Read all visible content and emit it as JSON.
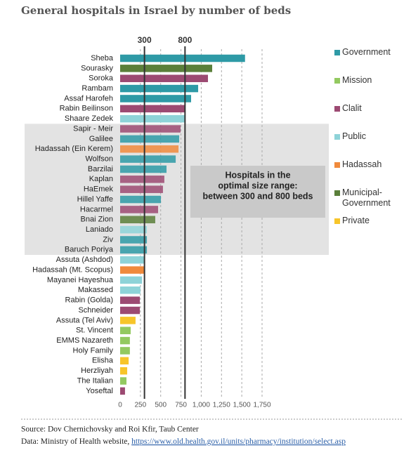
{
  "chart_data": {
    "type": "bar",
    "orientation": "horizontal",
    "title": "General hospitals in Israel by number of beds",
    "categories": [
      "Sheba",
      "Sourasky",
      "Soroka",
      "Rambam",
      "Assaf Harofeh",
      "Rabin Beilinson",
      "Shaare Zedek",
      "Sapir - Meir",
      "Galilee",
      "Hadassah (Ein Kerem)",
      "Wolfson",
      "Barzilai",
      "Kaplan",
      "HaEmek",
      "Hillel Yaffe",
      "Hacarmel",
      "Bnai Zion",
      "Laniado",
      "Ziv",
      "Baruch Poriya",
      "Assuta (Ashdod)",
      "Hadassah (Mt. Scopus)",
      "Mayanei Hayeshua",
      "Makassed",
      "Rabin (Golda)",
      "Schneider",
      "Assuta (Tel Aviv)",
      "St. Vincent",
      "EMMS Nazareth",
      "Holy Family",
      "Elisha",
      "Herzliyah",
      "The Italian",
      "Yoseftal"
    ],
    "values": [
      1540,
      1135,
      1083,
      962,
      875,
      805,
      800,
      745,
      728,
      720,
      685,
      572,
      545,
      528,
      503,
      468,
      433,
      330,
      330,
      330,
      295,
      295,
      270,
      250,
      243,
      243,
      190,
      130,
      120,
      120,
      105,
      87,
      78,
      60
    ],
    "groups": [
      0,
      5,
      2,
      0,
      0,
      2,
      3,
      2,
      0,
      4,
      0,
      0,
      2,
      2,
      0,
      2,
      5,
      3,
      0,
      0,
      3,
      4,
      3,
      3,
      2,
      2,
      6,
      1,
      1,
      1,
      6,
      6,
      1,
      2
    ],
    "legend": [
      {
        "name": "Government",
        "color": "#2e9aa6"
      },
      {
        "name": "Mission",
        "color": "#93c960"
      },
      {
        "name": "Clalit",
        "color": "#9c4a72"
      },
      {
        "name": "Public",
        "color": "#8ed3d8"
      },
      {
        "name": "Hadassah",
        "color": "#f08a3c"
      },
      {
        "name": "Municipal-\nGovernment",
        "color": "#5a7f3a"
      },
      {
        "name": "Private",
        "color": "#f7c52a"
      }
    ],
    "xlim": [
      0,
      1750
    ],
    "xticks": [
      0,
      250,
      500,
      750,
      {
        "value": 1000,
        "label": "1,000"
      },
      {
        "value": 1250,
        "label": "1,250"
      },
      {
        "value": 1500,
        "label": "1,500"
      },
      {
        "value": 1750,
        "label": "1,750"
      }
    ],
    "grid": true,
    "reference_lines": [
      300,
      800
    ],
    "highlight": {
      "from": 7,
      "to": 19,
      "label": [
        "Hospitals in the",
        "optimal size range:",
        "between 300 and 800 beds"
      ]
    },
    "source": "Source: Dov Chernichovsky and Roi Kfir, Taub Center",
    "data_note": "Data: Ministry of Health website, ",
    "data_url": "https://www.old.health.gov.il/units/pharmacy/institution/select.asp"
  }
}
